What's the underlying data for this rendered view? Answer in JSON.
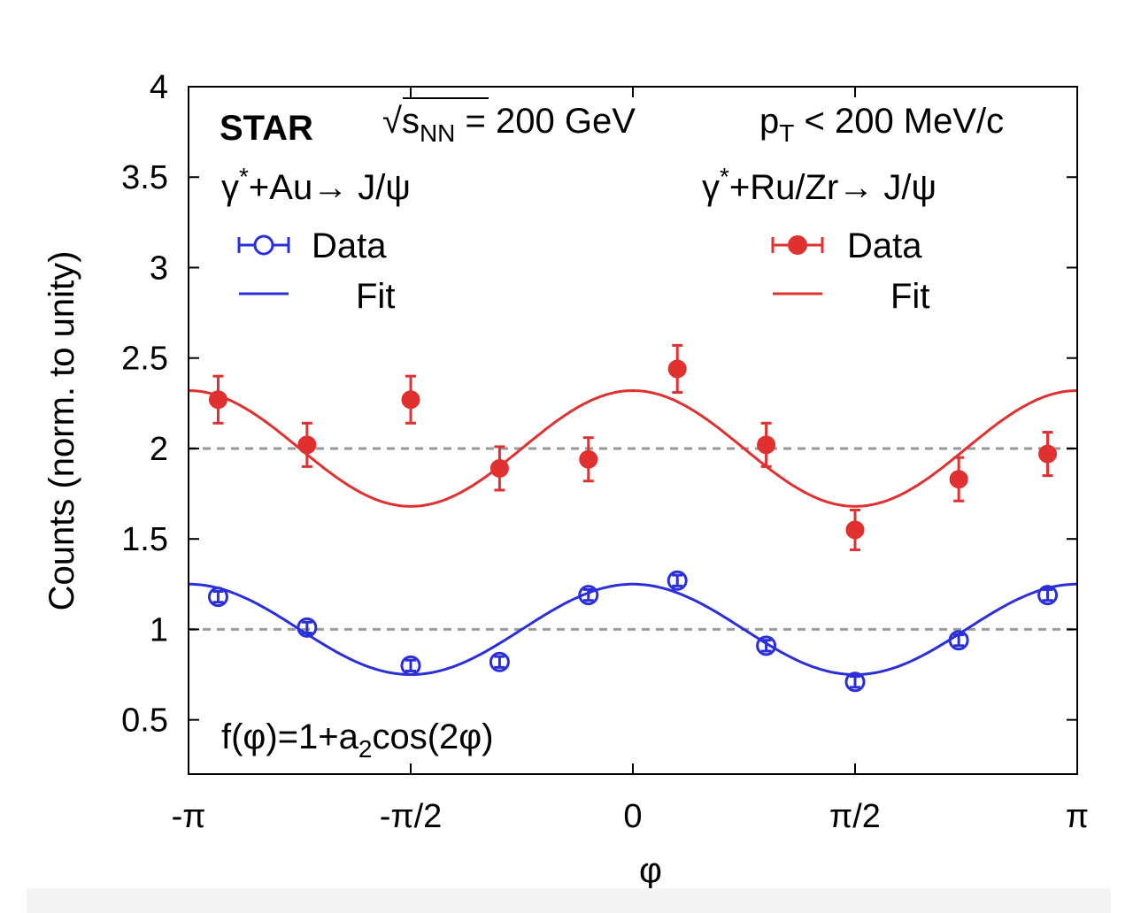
{
  "chart_data": {
    "type": "scatter",
    "xlabel": "φ",
    "ylabel": "Counts (norm. to unity)",
    "xlim": [
      -3.14159,
      3.14159
    ],
    "ylim": [
      0.2,
      4.0
    ],
    "xticks": [
      {
        "value": -3.14159,
        "label": "-π"
      },
      {
        "value": -1.5708,
        "label": "-π/2"
      },
      {
        "value": 0,
        "label": "0"
      },
      {
        "value": 1.5708,
        "label": "π/2"
      },
      {
        "value": 3.14159,
        "label": "π"
      }
    ],
    "yticks": [
      {
        "value": 0.5,
        "label": "0.5"
      },
      {
        "value": 1,
        "label": "1"
      },
      {
        "value": 1.5,
        "label": "1.5"
      },
      {
        "value": 2,
        "label": "2"
      },
      {
        "value": 2.5,
        "label": "2.5"
      },
      {
        "value": 3,
        "label": "3"
      },
      {
        "value": 3.5,
        "label": "3.5"
      },
      {
        "value": 4,
        "label": "4"
      }
    ],
    "reference_lines": [
      1,
      2
    ],
    "annotations": {
      "experiment": "STAR",
      "energy_prefix": "√",
      "energy_s": "s",
      "energy_sub": "NN",
      "energy_rest": " = 200 GeV",
      "pt_p": "p",
      "pt_sub": "T",
      "pt_rest": " < 200 MeV/c",
      "au_gamma": "γ",
      "au_star": "*",
      "au_rest": "+Au→ J/ψ",
      "ru_gamma": "γ",
      "ru_star": "*",
      "ru_rest": "+Ru/Zr→ J/ψ",
      "formula_pre": "f(φ)=1+a",
      "formula_sub": "2",
      "formula_post": "cos(2φ)"
    },
    "series": [
      {
        "name": "Data",
        "system": "Au",
        "kind": "points",
        "marker": "open-circle",
        "color": "#2b2fd9",
        "x": [
          -2.9322,
          -2.3038,
          -1.5708,
          -0.9425,
          -0.3142,
          0.3142,
          0.9425,
          1.5708,
          2.3038,
          2.9322
        ],
        "y": [
          1.18,
          1.01,
          0.8,
          0.82,
          1.19,
          1.27,
          0.91,
          0.71,
          0.94,
          1.19
        ],
        "yerr": [
          0.03,
          0.03,
          0.03,
          0.03,
          0.03,
          0.03,
          0.03,
          0.03,
          0.03,
          0.03
        ]
      },
      {
        "name": "Fit",
        "system": "Au",
        "kind": "line",
        "color": "#2b2fd9",
        "offset": 1.0,
        "a2": 0.25
      },
      {
        "name": "Data",
        "system": "Ru/Zr",
        "kind": "points",
        "marker": "filled-circle",
        "color": "#e03030",
        "x": [
          -2.9322,
          -2.3038,
          -1.5708,
          -0.9425,
          -0.3142,
          0.3142,
          0.9425,
          1.5708,
          2.3038,
          2.9322
        ],
        "y": [
          2.27,
          2.02,
          2.27,
          1.89,
          1.94,
          2.44,
          2.02,
          1.55,
          1.83,
          1.97
        ],
        "yerr": [
          0.13,
          0.12,
          0.13,
          0.12,
          0.12,
          0.13,
          0.12,
          0.11,
          0.12,
          0.12
        ]
      },
      {
        "name": "Fit",
        "system": "Ru/Zr",
        "kind": "line",
        "color": "#e03030",
        "offset": 2.0,
        "a2": 0.16
      }
    ],
    "legend": {
      "left": {
        "data_label": "Data",
        "fit_label": "Fit"
      },
      "right": {
        "data_label": "Data",
        "fit_label": "Fit"
      }
    }
  }
}
